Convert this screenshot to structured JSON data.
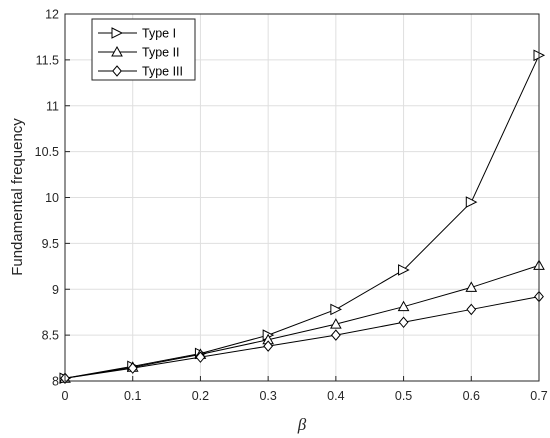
{
  "chart_data": {
    "type": "line",
    "x": [
      0,
      0.1,
      0.2,
      0.3,
      0.4,
      0.5,
      0.6,
      0.7
    ],
    "series": [
      {
        "name": "Type I",
        "marker": "triangle-right",
        "values": [
          8.03,
          8.16,
          8.3,
          8.5,
          8.78,
          9.21,
          9.95,
          11.55
        ]
      },
      {
        "name": "Type II",
        "marker": "triangle-up",
        "values": [
          8.03,
          8.15,
          8.29,
          8.45,
          8.62,
          8.81,
          9.02,
          9.26
        ]
      },
      {
        "name": "Type III",
        "marker": "diamond",
        "values": [
          8.03,
          8.14,
          8.26,
          8.38,
          8.5,
          8.64,
          8.78,
          8.92
        ]
      }
    ],
    "xlabel": "β",
    "ylabel": "Fundamental frequency",
    "xlim": [
      0,
      0.7
    ],
    "ylim": [
      8,
      12
    ],
    "xticks": [
      "0",
      "0.1",
      "0.2",
      "0.3",
      "0.4",
      "0.5",
      "0.6",
      "0.7"
    ],
    "yticks": [
      "8",
      "8.5",
      "9",
      "9.5",
      "10",
      "10.5",
      "11",
      "11.5",
      "12"
    ],
    "grid": true,
    "legend_position": "top-left",
    "line_color": "#000000",
    "grid_color": "#dfdfdf"
  }
}
